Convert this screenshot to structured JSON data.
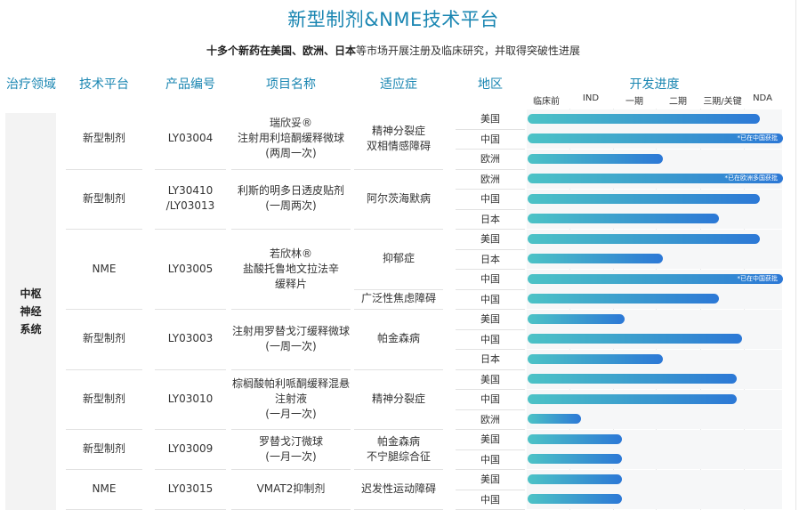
{
  "title": "新型制剂&NME技术平台",
  "subtitle": {
    "bold_text": "十多个新药在美国、欧洲、日本",
    "rest_text": "等市场开展注册及临床研究，并取得突破性进展"
  },
  "headers": {
    "area": "治疗领域",
    "platform": "技术平台",
    "code": "产品编号",
    "name": "项目名称",
    "indication": "适应症",
    "region": "地区",
    "progress": "开发进度"
  },
  "stages": [
    "临床前",
    "IND",
    "一期",
    "二期",
    "三期/关键",
    "NDA"
  ],
  "therapeutic_area": "中枢\n神经\n系统",
  "products": [
    {
      "platform": "新型制剂",
      "code": "LY03004",
      "name": "瑞欣妥®\n注射用利培酮缓释微球\n(两周一次)",
      "indications": [
        {
          "text": "精神分裂症\n双相情感障碍",
          "rows": 3
        }
      ],
      "rows": [
        {
          "region": "美国",
          "progress": 0.91,
          "note": ""
        },
        {
          "region": "中国",
          "progress": 1.0,
          "note": "*已在中国获批"
        },
        {
          "region": "欧洲",
          "progress": 0.53,
          "note": ""
        }
      ]
    },
    {
      "platform": "新型制剂",
      "code": "LY30410\n/LY03013",
      "name": "利斯的明多日透皮贴剂\n(一周两次)",
      "indications": [
        {
          "text": "阿尔茨海默病",
          "rows": 3
        }
      ],
      "rows": [
        {
          "region": "欧洲",
          "progress": 1.0,
          "note": "*已在欧洲多国获批"
        },
        {
          "region": "中国",
          "progress": 0.91,
          "note": ""
        },
        {
          "region": "日本",
          "progress": 0.75,
          "note": ""
        }
      ]
    },
    {
      "platform": "NME",
      "code": "LY03005",
      "name": "若欣林®\n盐酸托鲁地文拉法辛\n缓释片",
      "indications": [
        {
          "text": "抑郁症",
          "rows": 3
        },
        {
          "text": "广泛性焦虑障碍",
          "rows": 1
        }
      ],
      "rows": [
        {
          "region": "美国",
          "progress": 0.91,
          "note": ""
        },
        {
          "region": "日本",
          "progress": 0.53,
          "note": ""
        },
        {
          "region": "中国",
          "progress": 1.0,
          "note": "*已在中国获批"
        },
        {
          "region": "中国",
          "progress": 0.75,
          "note": ""
        }
      ]
    },
    {
      "platform": "新型制剂",
      "code": "LY03003",
      "name": "注射用罗替戈汀缓释微球\n(一周一次)",
      "indications": [
        {
          "text": "帕金森病",
          "rows": 3
        }
      ],
      "rows": [
        {
          "region": "美国",
          "progress": 0.38,
          "note": ""
        },
        {
          "region": "中国",
          "progress": 0.84,
          "note": ""
        },
        {
          "region": "日本",
          "progress": 0.53,
          "note": ""
        }
      ]
    },
    {
      "platform": "新型制剂",
      "code": "LY03010",
      "name": "棕榈酸帕利哌酮缓释混悬\n注射液\n(一月一次)",
      "indications": [
        {
          "text": "精神分裂症",
          "rows": 3
        }
      ],
      "rows": [
        {
          "region": "美国",
          "progress": 0.82,
          "note": ""
        },
        {
          "region": "中国",
          "progress": 0.82,
          "note": ""
        },
        {
          "region": "欧洲",
          "progress": 0.21,
          "note": ""
        }
      ]
    },
    {
      "platform": "新型制剂",
      "code": "LY03009",
      "name": "罗替戈汀微球\n(一月一次)",
      "indications": [
        {
          "text": "帕金森病\n不宁腿综合征",
          "rows": 2
        }
      ],
      "rows": [
        {
          "region": "美国",
          "progress": 0.37,
          "note": ""
        },
        {
          "region": "中国",
          "progress": 0.37,
          "note": ""
        }
      ]
    },
    {
      "platform": "NME",
      "code": "LY03015",
      "name": "VMAT2抑制剂",
      "indications": [
        {
          "text": "迟发性运动障碍",
          "rows": 2
        }
      ],
      "rows": [
        {
          "region": "美国",
          "progress": 0.37,
          "note": ""
        },
        {
          "region": "中国",
          "progress": 0.37,
          "note": ""
        }
      ]
    }
  ]
}
